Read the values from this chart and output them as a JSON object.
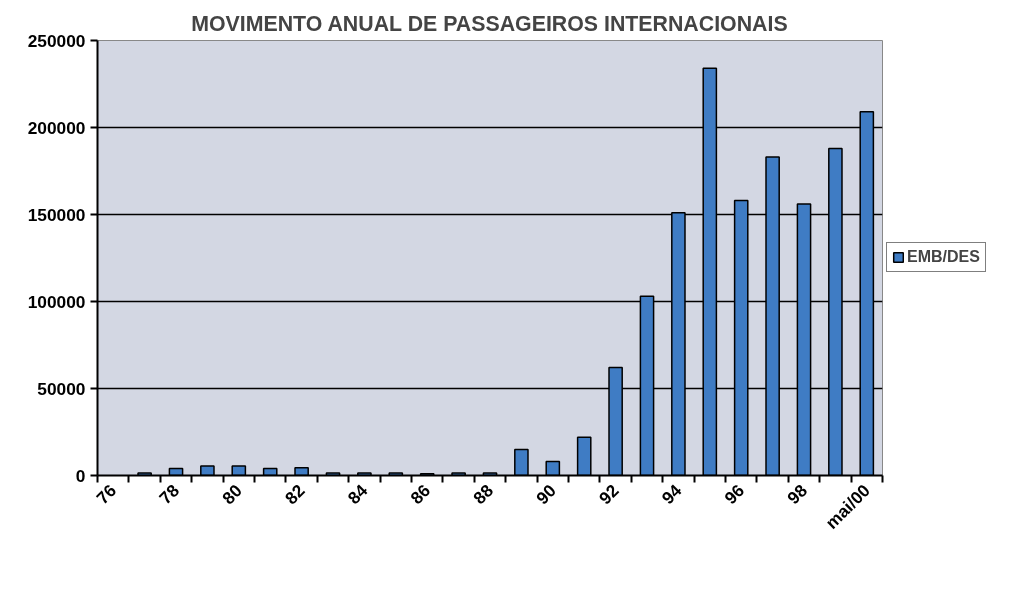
{
  "chart_data": {
    "type": "bar",
    "title": "MOVIMENTO ANUAL DE PASSAGEIROS INTERNACIONAIS",
    "categories": [
      "76",
      null,
      "78",
      null,
      "80",
      null,
      "82",
      null,
      "84",
      null,
      "86",
      null,
      "88",
      null,
      "90",
      null,
      "92",
      null,
      "94",
      null,
      "96",
      null,
      "98",
      null,
      "mai/00"
    ],
    "series": [
      {
        "name": "EMB/DES",
        "color": "#3f7cc4",
        "values": [
          null,
          1500,
          4000,
          5500,
          5500,
          4000,
          4500,
          1500,
          1500,
          1500,
          1000,
          1500,
          1500,
          15000,
          8000,
          22000,
          62000,
          103000,
          151000,
          234000,
          158000,
          183000,
          156000,
          188000,
          209000
        ]
      }
    ],
    "ylim": [
      0,
      250000
    ],
    "yticks": [
      0,
      50000,
      100000,
      150000,
      200000,
      250000
    ],
    "grid": "y",
    "legend": "right"
  }
}
